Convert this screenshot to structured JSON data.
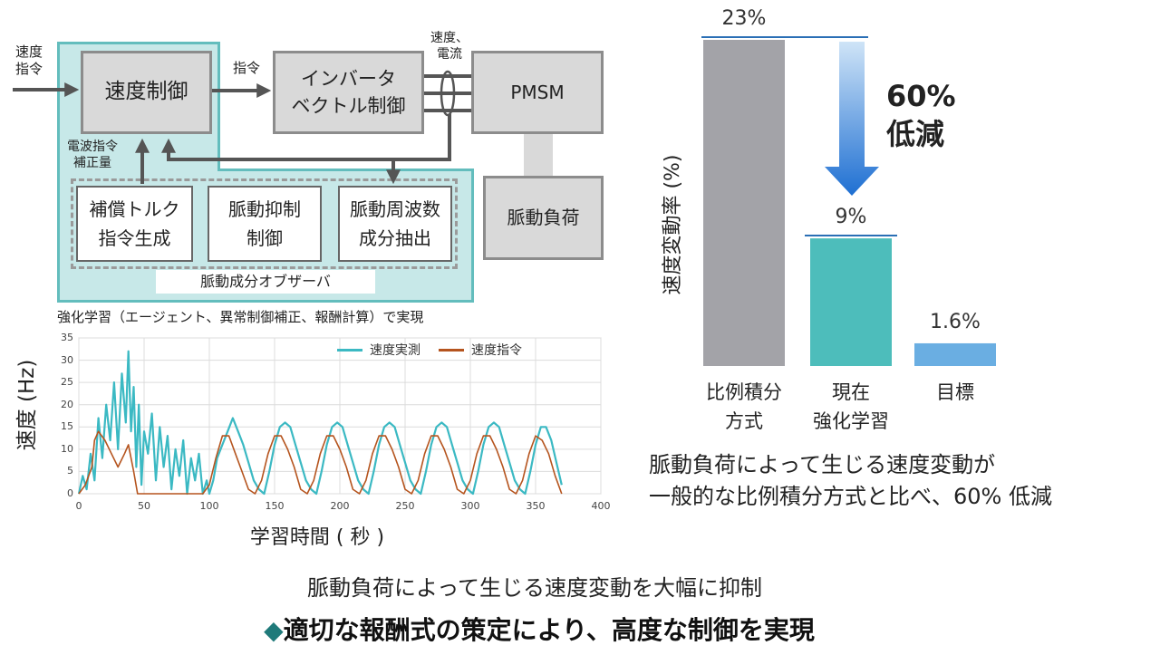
{
  "diagram": {
    "input_label": "速度\n指令",
    "speed_control": "速度制御",
    "command_label": "指令",
    "inverter": "インバータ\nベクトル制御",
    "sense_label": "速度、\n電流",
    "motor": "PMSM",
    "load": "脈動負荷",
    "correction_label": "電波指令\n補正量",
    "torque_block": "補償トルク\n指令生成",
    "suppress_block": "脈動抑制\n制御",
    "extract_block": "脈動周波数\n成分抽出",
    "observer_label": "脈動成分オブザーバ",
    "rl_caption": "強化学習（エージェント、異常制御補正、報酬計算）で実現"
  },
  "line_chart": {
    "type": "line",
    "ylabel": "速度 (Hz)",
    "xlabel": "学習時間 ( 秒 )",
    "xlim": [
      0,
      400
    ],
    "ylim": [
      0,
      35
    ],
    "xticks": [
      "0",
      "50",
      "100",
      "150",
      "200",
      "250",
      "300",
      "350",
      "400"
    ],
    "yticks": [
      "0",
      "5",
      "10",
      "15",
      "20",
      "25",
      "30",
      "35"
    ],
    "legend": [
      "速度実測",
      "速度指令"
    ],
    "colors": {
      "measured": "#3bb9c3",
      "command": "#b5541e"
    },
    "series_command": {
      "name": "速度指令",
      "x": [
        0,
        5,
        10,
        12,
        15,
        20,
        25,
        30,
        35,
        38,
        42,
        45,
        48,
        50,
        55,
        60,
        65,
        70,
        75,
        80,
        85,
        90,
        95,
        100,
        105,
        110,
        115,
        120,
        125,
        130,
        135,
        140,
        145,
        150,
        155,
        160,
        165,
        170,
        175,
        180,
        185,
        190,
        195,
        200,
        205,
        210,
        215,
        220,
        225,
        230,
        235,
        240,
        245,
        250,
        255,
        260,
        265,
        270,
        275,
        280,
        285,
        290,
        295,
        300,
        305,
        310,
        315,
        320,
        325,
        330,
        335,
        340,
        345,
        350,
        355,
        360,
        365,
        370
      ],
      "y": [
        0,
        2,
        6,
        12,
        14,
        12,
        9,
        6,
        9,
        11,
        5,
        0,
        0,
        0,
        0,
        0,
        0,
        0,
        0,
        0,
        0,
        0,
        0,
        2,
        8,
        13,
        13,
        9,
        5,
        1,
        0,
        3,
        9,
        13,
        13,
        10,
        6,
        1,
        0,
        3,
        9,
        13,
        13,
        10,
        6,
        1,
        0,
        3,
        9,
        13,
        13,
        10,
        6,
        1,
        0,
        3,
        9,
        13,
        13,
        10,
        6,
        1,
        0,
        3,
        9,
        13,
        13,
        10,
        6,
        1,
        0,
        3,
        9,
        13,
        12,
        9,
        4,
        0
      ]
    },
    "series_measured": {
      "name": "速度実測",
      "x": [
        0,
        3,
        6,
        9,
        12,
        15,
        18,
        21,
        24,
        27,
        30,
        33,
        36,
        38,
        40,
        42,
        44,
        46,
        48,
        50,
        53,
        56,
        59,
        62,
        65,
        68,
        71,
        74,
        77,
        80,
        83,
        86,
        89,
        92,
        95,
        98,
        100,
        103,
        106,
        110,
        114,
        118,
        122,
        126,
        130,
        134,
        138,
        142,
        146,
        150,
        154,
        158,
        162,
        166,
        170,
        174,
        178,
        182,
        186,
        190,
        194,
        198,
        202,
        206,
        210,
        214,
        218,
        222,
        226,
        230,
        234,
        238,
        242,
        246,
        250,
        254,
        258,
        262,
        266,
        270,
        274,
        278,
        282,
        286,
        290,
        294,
        298,
        302,
        306,
        310,
        314,
        318,
        322,
        326,
        330,
        334,
        338,
        342,
        346,
        350,
        354,
        358,
        362,
        366,
        370
      ],
      "y": [
        0,
        4,
        1,
        9,
        3,
        17,
        8,
        20,
        12,
        25,
        10,
        27,
        16,
        32,
        14,
        24,
        6,
        20,
        2,
        14,
        9,
        18,
        3,
        15,
        6,
        13,
        1,
        10,
        4,
        12,
        0,
        8,
        3,
        9,
        0,
        3,
        0,
        3,
        8,
        11,
        14,
        17,
        14,
        11,
        7,
        3,
        1,
        0,
        5,
        11,
        15,
        16,
        15,
        11,
        7,
        3,
        1,
        0,
        5,
        11,
        15,
        16,
        15,
        11,
        7,
        3,
        1,
        0,
        5,
        11,
        15,
        16,
        15,
        11,
        7,
        3,
        1,
        0,
        5,
        11,
        15,
        16,
        15,
        11,
        7,
        3,
        1,
        0,
        5,
        11,
        15,
        16,
        15,
        11,
        7,
        3,
        1,
        0,
        5,
        11,
        15,
        15,
        12,
        7,
        2
      ]
    }
  },
  "bar_chart": {
    "type": "bar",
    "ylabel": "速度変動率 (%)",
    "categories": [
      "比例積分\n方式",
      "現在\n強化学習",
      "目標"
    ],
    "values": [
      23,
      9,
      1.6
    ],
    "value_labels": [
      "23%",
      "9%",
      "1.6%"
    ],
    "colors": [
      "#a3a3a8",
      "#4dbdbb",
      "#6aaee2"
    ],
    "reduction_text": "60%\n低減"
  },
  "summary": {
    "right_text": "脈動負荷によって生じる速度変動が\n一般的な比例積分方式と比べ、60% 低減",
    "bottom_line1": "脈動負荷によって生じる速度変動を大幅に抑制",
    "bottom_line2": "適切な報酬式の策定により、高度な制御を実現"
  }
}
